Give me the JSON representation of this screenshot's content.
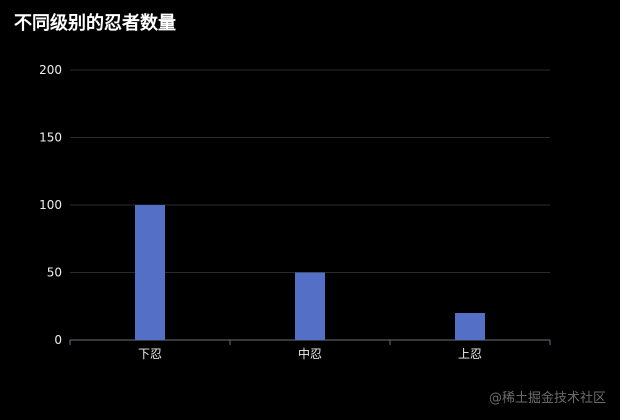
{
  "chart_data": {
    "type": "bar",
    "title": "不同级别的忍者数量",
    "categories": [
      "下忍",
      "中忍",
      "上忍"
    ],
    "values": [
      100,
      50,
      20
    ],
    "ylim": [
      0,
      200
    ],
    "yticks": [
      0,
      50,
      100,
      150,
      200
    ],
    "xlabel": "",
    "ylabel": "",
    "grid": true,
    "legend": "none"
  },
  "colors": {
    "background": "#000000",
    "bar": "#5470c6",
    "gridline": "#2b2b2b",
    "axis": "#6e7079",
    "tick_text": "#eeeeee",
    "title": "#ffffff",
    "watermark": "#6b6b6b"
  },
  "watermark": "@稀土掘金技术社区"
}
